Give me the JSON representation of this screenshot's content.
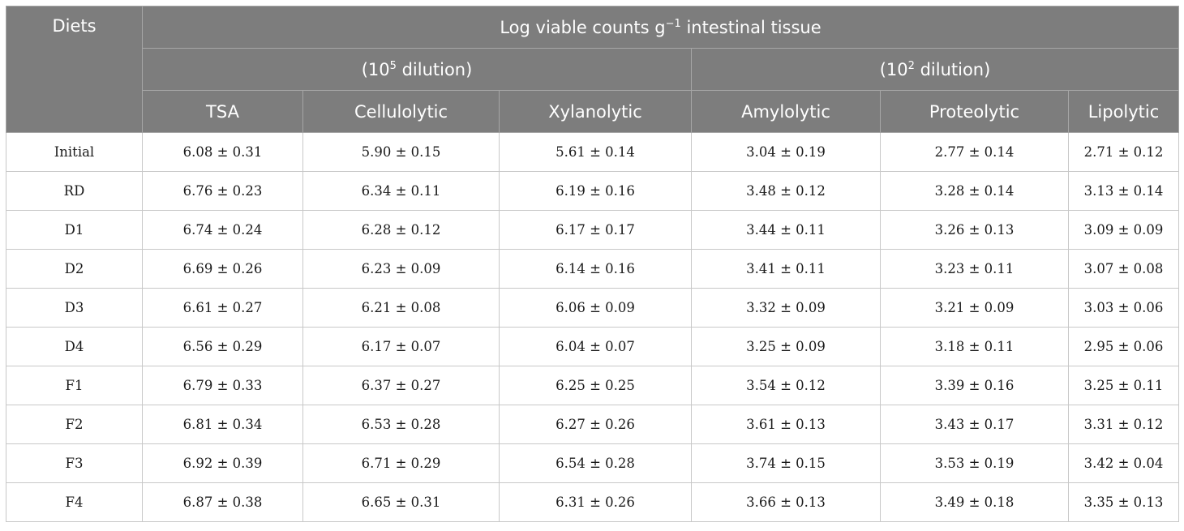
{
  "header": {
    "diets_label": "Diets",
    "group_title_pre": "Log viable counts g",
    "group_title_sup": "−1",
    "group_title_post": " intestinal tissue",
    "dilution_a_pre": "(10",
    "dilution_a_sup": "5",
    "dilution_a_post": " dilution)",
    "dilution_b_pre": "(10",
    "dilution_b_sup": "2",
    "dilution_b_post": " dilution)",
    "columns": [
      "TSA",
      "Cellulolytic",
      "Xylanolytic",
      "Amylolytic",
      "Proteolytic",
      "Lipolytic"
    ]
  },
  "rows": [
    {
      "diet": "Initial",
      "values": [
        "6.08 ± 0.31",
        "5.90 ± 0.15",
        "5.61 ± 0.14",
        "3.04 ± 0.19",
        "2.77 ± 0.14",
        "2.71 ± 0.12"
      ]
    },
    {
      "diet": "RD",
      "values": [
        "6.76 ± 0.23",
        "6.34 ± 0.11",
        "6.19 ± 0.16",
        "3.48 ± 0.12",
        "3.28 ± 0.14",
        "3.13 ± 0.14"
      ]
    },
    {
      "diet": "D1",
      "values": [
        "6.74 ± 0.24",
        "6.28 ± 0.12",
        "6.17 ± 0.17",
        "3.44 ± 0.11",
        "3.26 ± 0.13",
        "3.09 ± 0.09"
      ]
    },
    {
      "diet": "D2",
      "values": [
        "6.69 ± 0.26",
        "6.23 ± 0.09",
        "6.14 ± 0.16",
        "3.41 ± 0.11",
        "3.23 ± 0.11",
        "3.07 ± 0.08"
      ]
    },
    {
      "diet": "D3",
      "values": [
        "6.61 ± 0.27",
        "6.21 ± 0.08",
        "6.06 ± 0.09",
        "3.32 ± 0.09",
        "3.21 ± 0.09",
        "3.03 ± 0.06"
      ]
    },
    {
      "diet": "D4",
      "values": [
        "6.56 ± 0.29",
        "6.17 ± 0.07",
        "6.04 ± 0.07",
        "3.25 ± 0.09",
        "3.18 ± 0.11",
        "2.95 ± 0.06"
      ]
    },
    {
      "diet": "F1",
      "values": [
        "6.79 ± 0.33",
        "6.37 ± 0.27",
        "6.25 ± 0.25",
        "3.54 ± 0.12",
        "3.39 ± 0.16",
        "3.25 ± 0.11"
      ]
    },
    {
      "diet": "F2",
      "values": [
        "6.81 ± 0.34",
        "6.53 ± 0.28",
        "6.27 ± 0.26",
        "3.61 ± 0.13",
        "3.43 ± 0.17",
        "3.31 ± 0.12"
      ]
    },
    {
      "diet": "F3",
      "values": [
        "6.92 ± 0.39",
        "6.71 ± 0.29",
        "6.54 ± 0.28",
        "3.74 ± 0.15",
        "3.53 ± 0.19",
        "3.42 ± 0.04"
      ]
    },
    {
      "diet": "F4",
      "values": [
        "6.87 ± 0.38",
        "6.65 ± 0.31",
        "6.31 ± 0.26",
        "3.66 ± 0.13",
        "3.49 ± 0.18",
        "3.35 ± 0.13"
      ]
    }
  ]
}
